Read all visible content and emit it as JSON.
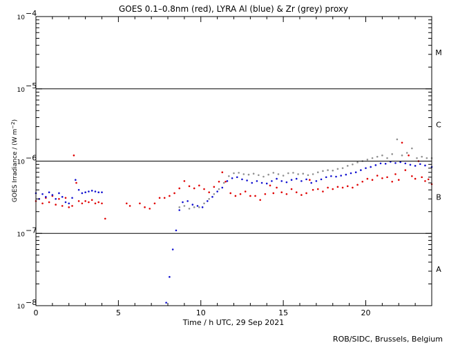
{
  "chart_data": {
    "type": "scatter",
    "title": "GOES 0.1–0.8nm (red), LYRA Al (blue) & Zr (grey) proxy",
    "xlabel": "Time / h UTC, 29 Sep 2021",
    "ylabel": "GOES Irradiance / (W m",
    "ylabel_exp": "−2",
    "ylabel_close": ")",
    "xlim": [
      0,
      24
    ],
    "ylim": [
      1e-08,
      0.0001
    ],
    "yscale": "log",
    "x_ticks": [
      0,
      5,
      10,
      15,
      20
    ],
    "x_tick_labels": [
      "0",
      "5",
      "10",
      "15",
      "20"
    ],
    "y_ticks": [
      {
        "value": 0.0001,
        "base": "10",
        "exp": "−4"
      },
      {
        "value": 1e-05,
        "base": "10",
        "exp": "−5"
      },
      {
        "value": 1e-06,
        "base": "10",
        "exp": "−6"
      },
      {
        "value": 1e-07,
        "base": "10",
        "exp": "−7"
      },
      {
        "value": 1e-08,
        "base": "10",
        "exp": "−8"
      }
    ],
    "threshold_lines": [
      1e-05,
      1e-06,
      1e-07
    ],
    "flare_classes": [
      {
        "label": "M",
        "value": 3.2e-05
      },
      {
        "label": "C",
        "value": 3.2e-06
      },
      {
        "label": "B",
        "value": 3.2e-07
      },
      {
        "label": "A",
        "value": 3.2e-08
      }
    ],
    "grid": false,
    "series": [
      {
        "color": "#e00000",
        "x": [
          0,
          0.2,
          0.4,
          0.6,
          0.8,
          1.0,
          1.2,
          1.4,
          1.6,
          1.8,
          2.0,
          2.2,
          2.3,
          2.45,
          2.6,
          2.8,
          3.0,
          3.2,
          3.4,
          3.6,
          3.8,
          4.0,
          4.2,
          5.5,
          5.7,
          6.3,
          6.6,
          6.9,
          7.2,
          7.5,
          7.8,
          8.1,
          8.4,
          8.7,
          9.0,
          9.3,
          9.6,
          9.9,
          10.2,
          10.5,
          10.8,
          11.1,
          11.3,
          11.5,
          11.8,
          12.1,
          12.4,
          12.7,
          13.0,
          13.3,
          13.6,
          13.9,
          14.2,
          14.4,
          14.6,
          14.9,
          15.2,
          15.5,
          15.8,
          16.1,
          16.4,
          16.6,
          16.8,
          17.1,
          17.4,
          17.7,
          18.0,
          18.3,
          18.6,
          18.9,
          19.2,
          19.5,
          19.8,
          20.1,
          20.4,
          20.7,
          21.0,
          21.3,
          21.6,
          21.8,
          22.0,
          22.2,
          22.4,
          22.6,
          22.8,
          23.0,
          23.2,
          23.4,
          23.6,
          23.8,
          24.0
        ],
        "y": [
          2.8e-07,
          3e-07,
          2.6e-07,
          3.1e-07,
          2.7e-07,
          3.3e-07,
          2.5e-07,
          3e-07,
          2.4e-07,
          3.1e-07,
          2.3e-07,
          2.4e-07,
          1.2e-06,
          5e-07,
          2.8e-07,
          2.6e-07,
          2.8e-07,
          2.7e-07,
          2.9e-07,
          2.6e-07,
          2.7e-07,
          2.6e-07,
          1.6e-07,
          2.6e-07,
          2.4e-07,
          2.6e-07,
          2.3e-07,
          2.2e-07,
          2.6e-07,
          3.1e-07,
          3.1e-07,
          3.3e-07,
          3.6e-07,
          4.2e-07,
          5.3e-07,
          4.5e-07,
          4.2e-07,
          4.6e-07,
          4.1e-07,
          3.7e-07,
          4.4e-07,
          5.2e-07,
          7e-07,
          5.2e-07,
          3.6e-07,
          3.3e-07,
          3.5e-07,
          3.8e-07,
          3.3e-07,
          3.3e-07,
          2.9e-07,
          3.5e-07,
          4.6e-07,
          3.6e-07,
          4.3e-07,
          3.7e-07,
          3.5e-07,
          4.1e-07,
          3.7e-07,
          3.4e-07,
          3.6e-07,
          5.5e-07,
          4e-07,
          4.1e-07,
          3.8e-07,
          4.3e-07,
          4.1e-07,
          4.4e-07,
          4.3e-07,
          4.5e-07,
          4.3e-07,
          4.7e-07,
          5.2e-07,
          5.7e-07,
          5.5e-07,
          6.3e-07,
          5.8e-07,
          6e-07,
          5.2e-07,
          6.6e-07,
          5.5e-07,
          1.8e-06,
          7.5e-07,
          1.2e-06,
          6.2e-07,
          5.7e-07,
          1e-06,
          6e-07,
          5.3e-07,
          5.6e-07,
          4.8e-07
        ]
      },
      {
        "color": "#1010d0",
        "x": [
          0,
          0.2,
          0.4,
          0.6,
          0.8,
          1.0,
          1.2,
          1.4,
          1.6,
          1.8,
          2.0,
          2.2,
          2.4,
          2.6,
          2.8,
          3.0,
          3.2,
          3.4,
          3.6,
          3.8,
          4.0,
          7.9,
          8.1,
          8.3,
          8.5,
          8.7,
          8.9,
          9.2,
          9.5,
          9.8,
          10.1,
          10.4,
          10.7,
          11.0,
          11.3,
          11.6,
          11.9,
          12.2,
          12.5,
          12.8,
          13.1,
          13.4,
          13.7,
          14.0,
          14.3,
          14.6,
          14.9,
          15.2,
          15.5,
          15.8,
          16.1,
          16.4,
          16.7,
          17.0,
          17.3,
          17.6,
          17.9,
          18.2,
          18.5,
          18.8,
          19.1,
          19.4,
          19.7,
          20.0,
          20.3,
          20.6,
          20.9,
          21.2,
          21.5,
          21.8,
          22.1,
          22.4,
          22.7,
          23.0,
          23.3,
          23.6,
          24.0
        ],
        "y": [
          3.6e-07,
          3e-07,
          3.5e-07,
          3.2e-07,
          3.7e-07,
          3.4e-07,
          3e-07,
          3.6e-07,
          3.2e-07,
          2.7e-07,
          2.6e-07,
          3.1e-07,
          5.5e-07,
          4e-07,
          3.6e-07,
          3.7e-07,
          3.8e-07,
          3.9e-07,
          3.8e-07,
          3.7e-07,
          3.7e-07,
          1.1e-08,
          2.5e-08,
          6e-08,
          1.1e-07,
          2.1e-07,
          2.7e-07,
          2.8e-07,
          2.5e-07,
          2.4e-07,
          2.3e-07,
          2.8e-07,
          3.2e-07,
          3.8e-07,
          4.3e-07,
          5.3e-07,
          5.8e-07,
          6e-07,
          5.6e-07,
          5.4e-07,
          5e-07,
          5.3e-07,
          5e-07,
          4.9e-07,
          5.3e-07,
          5.7e-07,
          5.3e-07,
          5.1e-07,
          5.5e-07,
          5.7e-07,
          5.3e-07,
          5.6e-07,
          5e-07,
          5.3e-07,
          5.6e-07,
          6e-07,
          6.2e-07,
          6.1e-07,
          6.3e-07,
          6.5e-07,
          6.8e-07,
          7e-07,
          7.5e-07,
          8e-07,
          8.3e-07,
          8.8e-07,
          9.3e-07,
          9.2e-07,
          9.8e-07,
          9.4e-07,
          9.7e-07,
          9.3e-07,
          8.9e-07,
          8.6e-07,
          9.1e-07,
          8.7e-07,
          8.3e-07
        ]
      },
      {
        "color": "#909090",
        "x": [
          8.7,
          9.0,
          9.3,
          9.6,
          9.9,
          10.2,
          10.5,
          10.8,
          11.1,
          11.4,
          11.7,
          12.0,
          12.3,
          12.6,
          12.9,
          13.2,
          13.5,
          13.8,
          14.1,
          14.4,
          14.7,
          15.0,
          15.3,
          15.6,
          15.9,
          16.2,
          16.5,
          16.8,
          17.1,
          17.4,
          17.7,
          18.0,
          18.3,
          18.6,
          18.9,
          19.2,
          19.5,
          19.8,
          20.1,
          20.4,
          20.7,
          21.0,
          21.3,
          21.6,
          21.9,
          22.2,
          22.5,
          22.8,
          23.1,
          23.4,
          23.7,
          24.0
        ],
        "y": [
          2.3e-07,
          2.4e-07,
          2.2e-07,
          2.3e-07,
          2.3e-07,
          2.6e-07,
          3e-07,
          3.5e-07,
          4.1e-07,
          5e-07,
          6.2e-07,
          6.8e-07,
          6.9e-07,
          6.6e-07,
          6.5e-07,
          6.7e-07,
          6.4e-07,
          6.1e-07,
          6.5e-07,
          6.9e-07,
          6.6e-07,
          6.3e-07,
          6.8e-07,
          6.9e-07,
          6.6e-07,
          6.7e-07,
          6.4e-07,
          6.6e-07,
          7e-07,
          7.3e-07,
          7.5e-07,
          7.4e-07,
          7.8e-07,
          8e-07,
          8.6e-07,
          9e-07,
          9.6e-07,
          1e-06,
          1.05e-06,
          1.1e-06,
          1.15e-06,
          1.2e-06,
          1.1e-06,
          1.25e-06,
          2e-06,
          1.2e-06,
          1.3e-06,
          1.5e-06,
          1.1e-06,
          1.15e-06,
          1.1e-06,
          1.1e-06
        ]
      }
    ],
    "credit": "ROB/SIDC, Brussels, Belgium"
  }
}
